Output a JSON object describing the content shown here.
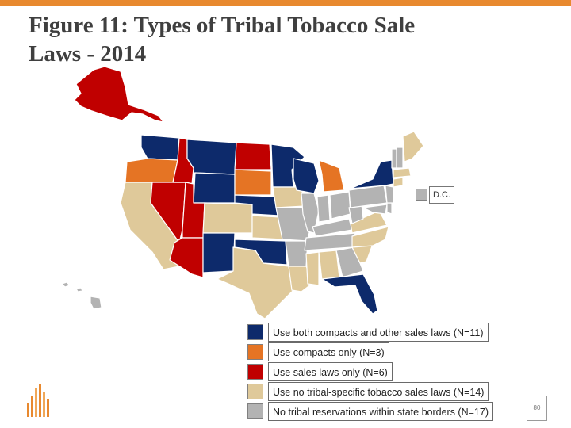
{
  "title": {
    "line1": "Figure 11: Types of Tribal Tobacco Sale",
    "line2": "Laws - 2014"
  },
  "colors": {
    "accent": "#e8892f",
    "both": "#0d2a6b",
    "compacts_only": "#e57424",
    "sales_laws_only": "#c00000",
    "no_specific": "#dfc99a",
    "no_reservations": "#b3b3b3",
    "border": "#ffffff"
  },
  "dc_label": "D.C.",
  "page_number": "80",
  "chart_data": {
    "type": "map",
    "title": "Figure 11: Types of Tribal Tobacco Sale Laws - 2014",
    "legend_placement": "bottom-right",
    "categories": [
      {
        "key": "both",
        "label": "Use both compacts and other sales laws (N=11)",
        "color": "#0d2a6b",
        "states": [
          "WA",
          "MT",
          "WY",
          "NM",
          "ND",
          "NE",
          "OK",
          "MN",
          "WI",
          "NY",
          "FL"
        ]
      },
      {
        "key": "compacts_only",
        "label": "Use compacts only (N=3)",
        "color": "#e57424",
        "states": [
          "OR",
          "SD",
          "MI"
        ]
      },
      {
        "key": "sales_laws_only",
        "label": "Use sales laws only (N=6)",
        "color": "#c00000",
        "states": [
          "AK",
          "ID",
          "NV",
          "UT",
          "AZ",
          "ND-note"
        ]
      },
      {
        "key": "no_specific",
        "label": "Use no tribal-specific tobacco sales laws (N=14)",
        "color": "#dfc99a",
        "states": [
          "CA",
          "CO",
          "KS",
          "TX",
          "LA",
          "MS",
          "AL",
          "NC",
          "SC",
          "VA",
          "ME",
          "MA",
          "CT",
          "IA"
        ]
      },
      {
        "key": "no_reservations",
        "label": "No tribal reservations within state borders (N=17)",
        "color": "#b3b3b3",
        "states": [
          "MO",
          "AR",
          "IL",
          "IN",
          "OH",
          "KY",
          "TN",
          "GA",
          "WV",
          "PA",
          "NJ",
          "DE",
          "MD",
          "VT",
          "NH",
          "HI",
          "DC"
        ]
      }
    ]
  }
}
